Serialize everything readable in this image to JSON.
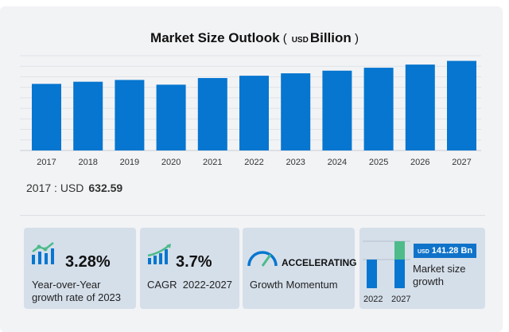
{
  "chart_data": {
    "type": "bar",
    "title": "Market Size Outlook",
    "unit_prefix": "USD",
    "unit": "Billion",
    "categories": [
      "2017",
      "2018",
      "2019",
      "2020",
      "2021",
      "2022",
      "2023",
      "2024",
      "2025",
      "2026",
      "2027"
    ],
    "values": [
      632.59,
      653,
      670,
      625,
      688,
      710,
      733,
      758,
      786,
      816,
      851
    ],
    "ylim": [
      0,
      900
    ],
    "grid": true,
    "bar_color": "#0676d0"
  },
  "note": {
    "label": "2017 : USD",
    "value": "632.59"
  },
  "cards": [
    {
      "value": "3.28%",
      "label1": "Year-over-Year",
      "label2": "growth rate of 2023",
      "icon": "growth-chart-icon"
    },
    {
      "value": "3.7%",
      "label1": "CAGR  2022-2027",
      "icon": "rising-bars-icon"
    },
    {
      "value": "ACCELERATING",
      "label1": "Growth Momentum",
      "icon": "speedometer-icon"
    },
    {
      "badge_prefix": "USD",
      "badge": "141.28 Bn",
      "label1": "Market size",
      "label2": "growth",
      "year1": "2022",
      "year2": "2027",
      "icon": "mini-bar-icon"
    }
  ],
  "colors": {
    "blue": "#0676d0",
    "green": "#4dbb8a",
    "card": "#d5dfea"
  }
}
